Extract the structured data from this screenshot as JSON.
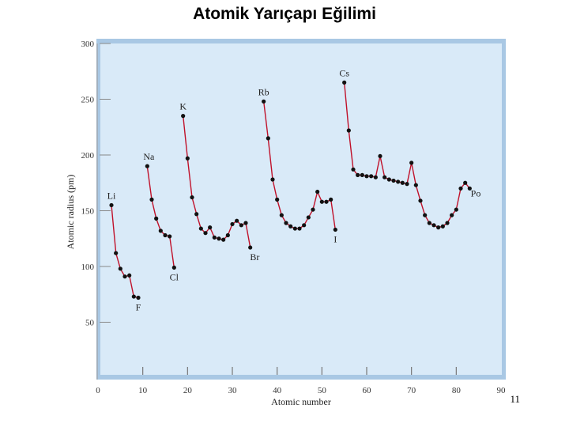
{
  "slide": {
    "title": "Atomik Yarıçapı Eğilimi",
    "page_number": "11"
  },
  "chart_data": {
    "type": "line",
    "title": "",
    "xlabel": "Atomic number",
    "ylabel": "Atomic radius (pm)",
    "xlim": [
      0,
      90
    ],
    "ylim": [
      0,
      300
    ],
    "xticks": [
      0,
      10,
      20,
      30,
      40,
      50,
      60,
      70,
      80,
      90
    ],
    "yticks": [
      50,
      100,
      150,
      200,
      250,
      300
    ],
    "grid": false,
    "colors": {
      "background": "#d9eaf8",
      "frame": "#a9c8e4",
      "line": "#c0112a",
      "marker": "#111111"
    },
    "series": [
      {
        "points": [
          [
            3,
            155
          ],
          [
            4,
            112
          ],
          [
            5,
            98
          ],
          [
            6,
            91
          ],
          [
            7,
            92
          ],
          [
            8,
            73
          ],
          [
            9,
            72
          ]
        ]
      },
      {
        "points": [
          [
            11,
            190
          ],
          [
            12,
            160
          ],
          [
            13,
            143
          ],
          [
            14,
            132
          ],
          [
            15,
            128
          ],
          [
            16,
            127
          ],
          [
            17,
            99
          ]
        ]
      },
      {
        "points": [
          [
            19,
            235
          ],
          [
            20,
            197
          ],
          [
            21,
            162
          ],
          [
            22,
            147
          ],
          [
            23,
            134
          ],
          [
            24,
            130
          ],
          [
            25,
            135
          ],
          [
            26,
            126
          ],
          [
            27,
            125
          ],
          [
            28,
            124
          ],
          [
            29,
            128
          ],
          [
            30,
            138
          ],
          [
            31,
            141
          ],
          [
            32,
            137
          ],
          [
            33,
            139
          ],
          [
            34,
            117
          ]
        ]
      },
      {
        "points": [
          [
            37,
            248
          ],
          [
            38,
            215
          ],
          [
            39,
            178
          ],
          [
            40,
            160
          ],
          [
            41,
            146
          ],
          [
            42,
            139
          ],
          [
            43,
            136
          ],
          [
            44,
            134
          ],
          [
            45,
            134
          ],
          [
            46,
            137
          ],
          [
            47,
            144
          ],
          [
            48,
            151
          ],
          [
            49,
            167
          ],
          [
            50,
            158
          ],
          [
            51,
            158
          ],
          [
            52,
            160
          ],
          [
            53,
            133
          ]
        ]
      },
      {
        "points": [
          [
            55,
            265
          ],
          [
            56,
            222
          ],
          [
            57,
            187
          ],
          [
            58,
            182
          ],
          [
            59,
            182
          ],
          [
            60,
            181
          ],
          [
            61,
            181
          ],
          [
            62,
            180
          ],
          [
            63,
            199
          ],
          [
            64,
            180
          ],
          [
            65,
            178
          ],
          [
            66,
            177
          ],
          [
            67,
            176
          ],
          [
            68,
            175
          ],
          [
            69,
            174
          ],
          [
            70,
            193
          ],
          [
            71,
            173
          ],
          [
            72,
            159
          ],
          [
            73,
            146
          ],
          [
            74,
            139
          ],
          [
            75,
            137
          ],
          [
            76,
            135
          ],
          [
            77,
            136
          ],
          [
            78,
            139
          ],
          [
            79,
            146
          ],
          [
            80,
            151
          ],
          [
            81,
            170
          ],
          [
            82,
            175
          ],
          [
            83,
            170
          ]
        ]
      }
    ],
    "annotations": [
      {
        "text": "Li",
        "x": 3
      },
      {
        "text": "F",
        "x": 9
      },
      {
        "text": "Na",
        "x": 11
      },
      {
        "text": "Cl",
        "x": 17
      },
      {
        "text": "K",
        "x": 19
      },
      {
        "text": "Br",
        "x": 35
      },
      {
        "text": "Rb",
        "x": 37
      },
      {
        "text": "I",
        "x": 53
      },
      {
        "text": "Cs",
        "x": 55
      },
      {
        "text": "Po",
        "x": 84
      }
    ]
  }
}
